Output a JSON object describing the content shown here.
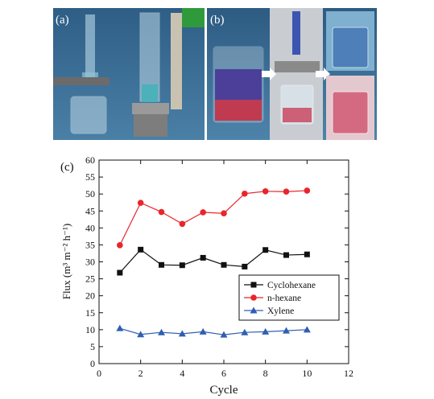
{
  "figure": {
    "panel_a_label": "(a)",
    "panel_b_label": "(b)",
    "panel_c_label": "(c)"
  },
  "colors": {
    "cyclohexane": "#111111",
    "n_hexane": "#e8262a",
    "xylene": "#2f5fb3",
    "photo_bg_a": "#3a6a8c",
    "photo_bg_b": "#3f6f93"
  },
  "chart_data": {
    "type": "line",
    "xlabel": "Cycle",
    "ylabel": "Flux (m³ m⁻² h⁻¹)",
    "xlim": [
      0,
      12
    ],
    "ylim": [
      0,
      60
    ],
    "x_ticks": [
      "0",
      "2",
      "4",
      "6",
      "8",
      "10",
      "12"
    ],
    "y_ticks": [
      "0",
      "5",
      "10",
      "15",
      "20",
      "25",
      "30",
      "35",
      "40",
      "45",
      "50",
      "55",
      "60"
    ],
    "x": [
      1,
      2,
      3,
      4,
      5,
      6,
      7,
      8,
      9,
      10
    ],
    "series": [
      {
        "name": "Cyclohexane",
        "marker": "square",
        "values": [
          26.8,
          33.6,
          29.1,
          29.0,
          31.2,
          29.1,
          28.6,
          33.5,
          32.0,
          32.2
        ]
      },
      {
        "name": "n-hexane",
        "marker": "circle",
        "values": [
          34.9,
          47.4,
          44.7,
          41.2,
          44.6,
          44.3,
          50.1,
          50.8,
          50.7,
          51.0
        ]
      },
      {
        "name": "Xylene",
        "marker": "triangle",
        "values": [
          10.4,
          8.6,
          9.2,
          8.8,
          9.4,
          8.5,
          9.2,
          9.4,
          9.7,
          10.0
        ]
      }
    ],
    "grid": false,
    "legend_position": "right"
  }
}
